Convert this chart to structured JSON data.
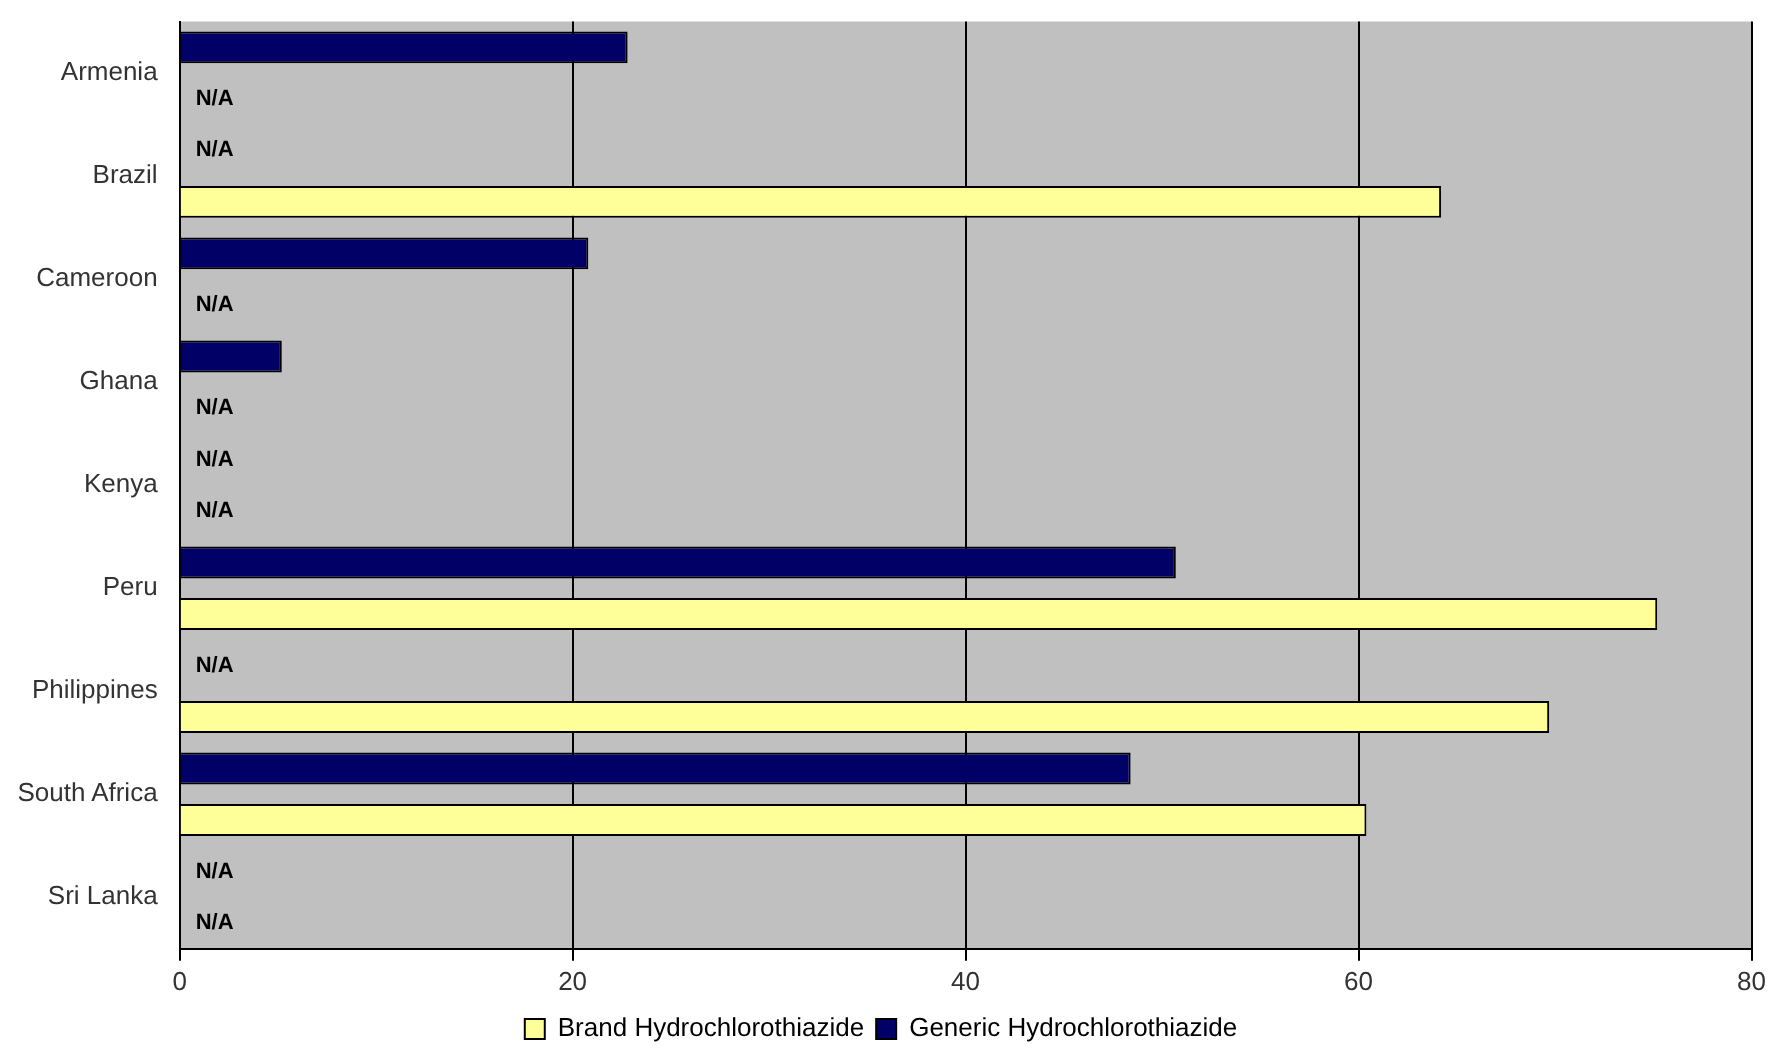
{
  "chart_data": {
    "type": "bar",
    "orientation": "horizontal",
    "categories": [
      "Armenia",
      "Brazil",
      "Cameroon",
      "Ghana",
      "Kenya",
      "Peru",
      "Philippines",
      "South Africa",
      "Sri Lanka"
    ],
    "series": [
      {
        "name": "Generic Hydrochlorothiazide",
        "color": "#000066",
        "values": [
          22.8,
          null,
          20.8,
          5.2,
          null,
          50.7,
          null,
          48.4,
          null
        ],
        "value_labels": [
          null,
          "N/A",
          null,
          null,
          "N/A",
          null,
          "N/A",
          null,
          "N/A"
        ]
      },
      {
        "name": "Brand Hydrochlorothiazide",
        "color": "#ffff99",
        "values": [
          null,
          64.2,
          null,
          null,
          null,
          75.2,
          69.7,
          60.4,
          null
        ],
        "value_labels": [
          "N/A",
          null,
          "N/A",
          "N/A",
          "N/A",
          null,
          null,
          null,
          "N/A"
        ]
      }
    ],
    "xlim": [
      0,
      80
    ],
    "xticks": [
      0,
      20,
      40,
      60,
      80
    ],
    "grid": "x",
    "legend": "bottom"
  }
}
